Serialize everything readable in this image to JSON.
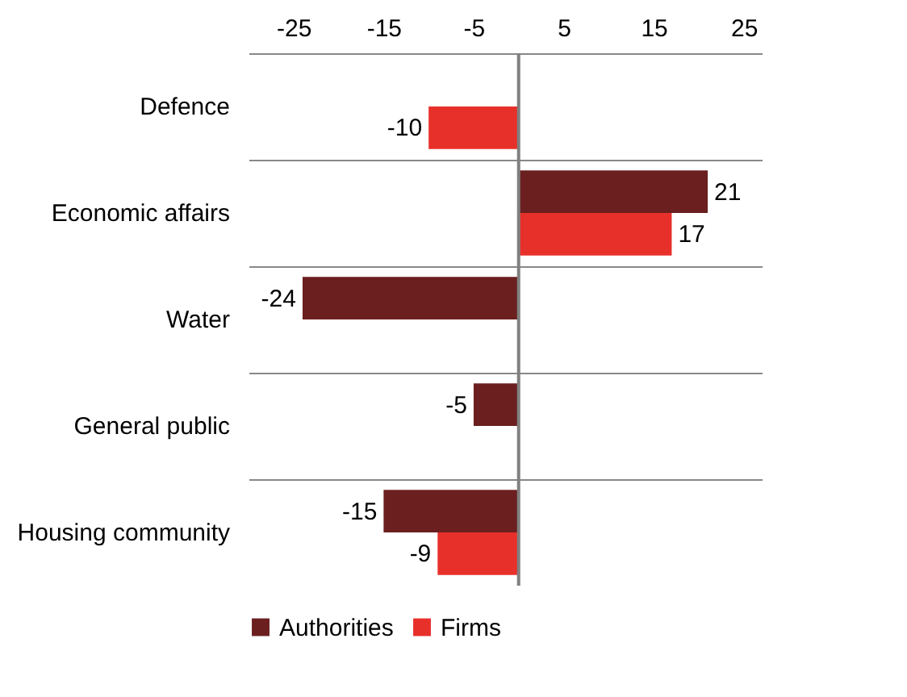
{
  "chart_data": {
    "type": "bar",
    "orientation": "horizontal",
    "categories": [
      "Defence",
      "Economic affairs",
      "Water",
      "General public",
      "Housing community"
    ],
    "series": [
      {
        "name": "Authorities",
        "color": "#6b1f1f",
        "values": [
          null,
          21,
          -24,
          -5,
          -15
        ]
      },
      {
        "name": "Firms",
        "color": "#e8302a",
        "values": [
          -10,
          17,
          null,
          null,
          -9
        ]
      }
    ],
    "xlim": [
      -30,
      27
    ],
    "xticks": [
      -25,
      -15,
      -5,
      5,
      15,
      25
    ],
    "grid": "y",
    "legend": "bottom",
    "data_labels": true,
    "ref_lines": [
      {
        "axis": "x",
        "value": 0,
        "color": "#808080"
      }
    ]
  }
}
